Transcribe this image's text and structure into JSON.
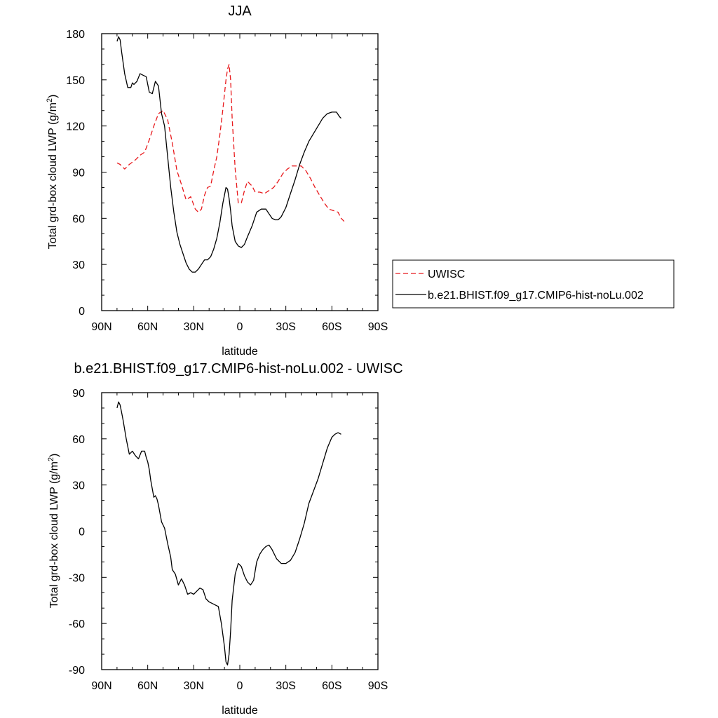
{
  "chart_data": [
    {
      "type": "line",
      "title": "JJA",
      "xlabel": "latitude",
      "ylabel": "Total grd-box cloud LWP (g/m",
      "ylabel_sup": "2",
      "ylabel_end": ")",
      "xlim": [
        -90,
        90
      ],
      "ylim": [
        0,
        180
      ],
      "x_ticks": [
        -90,
        -60,
        -30,
        0,
        30,
        60,
        90
      ],
      "x_tick_labels": [
        "90N",
        "60N",
        "30N",
        "0",
        "30S",
        "60S",
        "90S"
      ],
      "y_ticks": [
        0,
        30,
        60,
        90,
        120,
        150,
        180
      ],
      "y_tick_labels": [
        "0",
        "30",
        "60",
        "90",
        "120",
        "150",
        "180"
      ],
      "grid": false,
      "legend_position": "right",
      "series": [
        {
          "name": "UWISC",
          "color": "#e8191c",
          "dash": "dashed",
          "x": [
            -80,
            -78,
            -75,
            -72,
            -68,
            -65,
            -62,
            -59,
            -56,
            -53,
            -50,
            -47,
            -44,
            -41,
            -38,
            -35,
            -32,
            -29,
            -27,
            -25,
            -23,
            -21,
            -19,
            -17,
            -15,
            -13,
            -11,
            -9,
            -8,
            -7,
            -6,
            -5,
            -3,
            -1,
            1,
            3,
            5,
            8,
            10,
            13,
            16,
            19,
            22,
            25,
            28,
            31,
            34,
            37,
            40,
            43,
            46,
            49,
            52,
            55,
            58,
            61,
            64,
            66,
            68
          ],
          "y": [
            96,
            95,
            92,
            95,
            98,
            101,
            103,
            111,
            120,
            128,
            130,
            124,
            109,
            91,
            82,
            72,
            74,
            66,
            64,
            66,
            75,
            80,
            81,
            91,
            100,
            114,
            131,
            150,
            157,
            160,
            150,
            125,
            92,
            70,
            70,
            78,
            84,
            81,
            77,
            77,
            76,
            78,
            80,
            84,
            89,
            92,
            94,
            94,
            94,
            91,
            86,
            80,
            75,
            70,
            66,
            65,
            64,
            60,
            58
          ]
        },
        {
          "name": "b.e21.BHIST.f09_g17.CMIP6-hist-noLu.002",
          "color": "#000000",
          "dash": "solid",
          "x": [
            -80,
            -79,
            -78,
            -77,
            -75,
            -73,
            -71,
            -70,
            -69,
            -67,
            -65,
            -63,
            -61,
            -59,
            -57,
            -55,
            -53,
            -51,
            -49,
            -47,
            -45,
            -43,
            -41,
            -39,
            -37,
            -35,
            -33,
            -31,
            -29,
            -27,
            -25,
            -23,
            -21,
            -19,
            -17,
            -15,
            -13,
            -11,
            -9,
            -8,
            -7,
            -6,
            -5,
            -3,
            -1,
            1,
            3,
            5,
            8,
            11,
            14,
            17,
            19,
            21,
            23,
            25,
            27,
            30,
            33,
            36,
            39,
            42,
            45,
            48,
            51,
            54,
            57,
            60,
            63,
            65,
            66
          ],
          "y": [
            175,
            178,
            176,
            168,
            154,
            145,
            145,
            148,
            147,
            149,
            154,
            153,
            152,
            142,
            141,
            149,
            146,
            128,
            120,
            100,
            80,
            64,
            51,
            43,
            37,
            31,
            27,
            25,
            25,
            27,
            30,
            33,
            33,
            35,
            40,
            47,
            57,
            70,
            80,
            79,
            73,
            65,
            55,
            45,
            42,
            41,
            43,
            48,
            55,
            64,
            66,
            66,
            63,
            60,
            59,
            59,
            61,
            67,
            76,
            85,
            95,
            103,
            110,
            115,
            120,
            125,
            128,
            129,
            129,
            126,
            125
          ]
        }
      ]
    },
    {
      "type": "line",
      "title": "b.e21.BHIST.f09_g17.CMIP6-hist-noLu.002 - UWISC",
      "xlabel": "latitude",
      "ylabel": "Total grd-box cloud LWP (g/m",
      "ylabel_sup": "2",
      "ylabel_end": ")",
      "xlim": [
        -90,
        90
      ],
      "ylim": [
        -90,
        90
      ],
      "x_ticks": [
        -90,
        -60,
        -30,
        0,
        30,
        60,
        90
      ],
      "x_tick_labels": [
        "90N",
        "60N",
        "30N",
        "0",
        "30S",
        "60S",
        "90S"
      ],
      "y_ticks": [
        -90,
        -60,
        -30,
        0,
        30,
        60,
        90
      ],
      "y_tick_labels": [
        "-90",
        "-60",
        "-30",
        "0",
        "30",
        "60",
        "90"
      ],
      "grid": false,
      "series": [
        {
          "color": "#000000",
          "dash": "solid",
          "x": [
            -80,
            -79,
            -78,
            -77,
            -76,
            -74,
            -72,
            -70,
            -68,
            -66,
            -64,
            -62,
            -61,
            -60,
            -59,
            -58,
            -56,
            -55,
            -54,
            -53,
            -51,
            -49,
            -47,
            -45,
            -44,
            -42,
            -40,
            -38,
            -36,
            -34,
            -32,
            -30,
            -28,
            -26,
            -24,
            -22,
            -20,
            -18,
            -16,
            -14,
            -12,
            -10,
            -9,
            -8,
            -7,
            -6,
            -5,
            -3,
            -1,
            1,
            3,
            5,
            7,
            9,
            11,
            13,
            15,
            17,
            19,
            21,
            24,
            27,
            30,
            33,
            36,
            39,
            42,
            45,
            48,
            51,
            54,
            57,
            60,
            62,
            64,
            66
          ],
          "y": [
            80,
            84,
            82,
            77,
            72,
            60,
            50,
            52,
            49,
            47,
            52,
            52,
            48,
            45,
            40,
            33,
            22,
            23,
            21,
            17,
            6,
            2,
            -8,
            -17,
            -25,
            -28,
            -35,
            -31,
            -35,
            -41,
            -40,
            -41,
            -39,
            -37,
            -38,
            -44,
            -46,
            -47,
            -48,
            -49,
            -60,
            -75,
            -85,
            -87,
            -80,
            -65,
            -45,
            -28,
            -21,
            -23,
            -29,
            -33,
            -35,
            -32,
            -20,
            -15,
            -12,
            -10,
            -9,
            -12,
            -18,
            -21,
            -21,
            -19,
            -14,
            -5,
            5,
            18,
            26,
            34,
            44,
            54,
            61,
            63,
            64,
            63
          ]
        }
      ]
    }
  ]
}
